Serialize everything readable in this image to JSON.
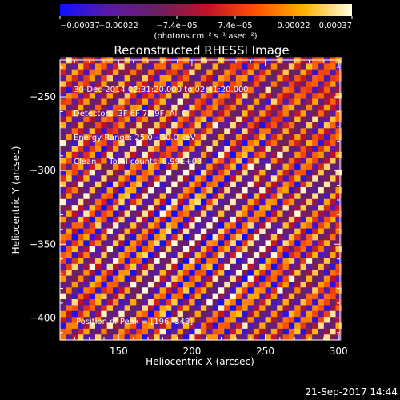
{
  "chart_data": {
    "type": "heatmap",
    "title": "Reconstructed RHESSI Image",
    "xlabel": "Heliocentric X (arcsec)",
    "ylabel": "Heliocentric Y (arcsec)",
    "xlim": [
      110,
      301
    ],
    "ylim": [
      -415,
      -225
    ],
    "x_ticks": [
      150,
      200,
      250,
      300
    ],
    "y_ticks": [
      -400,
      -350,
      -300,
      -250
    ],
    "x_tick_labels": [
      "150",
      "200",
      "250",
      "300"
    ],
    "y_tick_labels": [
      "−400",
      "−350",
      "−300",
      "−250"
    ],
    "grid": false,
    "colorbar": {
      "min": -0.00037,
      "max": 0.00037,
      "tick_labels": [
        "−0.00037",
        "−0.00022",
        "−7.4e−05",
        "7.4e−05",
        "0.00022",
        "0.00037"
      ],
      "unit_label": "(photons cm⁻² s⁻¹ asec⁻²)",
      "colormap": [
        "#1010ff",
        "#5a1aa8",
        "#6a2060",
        "#c0102a",
        "#ff5000",
        "#ffb000",
        "#ffffe0"
      ]
    },
    "annotations": [
      "30-Dec-2014 02:31:20.000 to 02:41:20.000",
      "Detectors: 3F 6F 7F 9F, All 0",
      "Energy Range: 25.0 - 50.0 keV",
      "Clean     Total counts: 8.99E+03"
    ],
    "peak_label": "Position of Peak = [196,-348]",
    "peak": [
      196,
      -348
    ],
    "pattern": {
      "description_units": "arcsec",
      "stripe_orientation": "diagonal lower-left to upper-right",
      "stripe_period": 13,
      "peak_value": 0.00037
    }
  },
  "footer": {
    "timestamp": "21-Sep-2017 14:44"
  }
}
